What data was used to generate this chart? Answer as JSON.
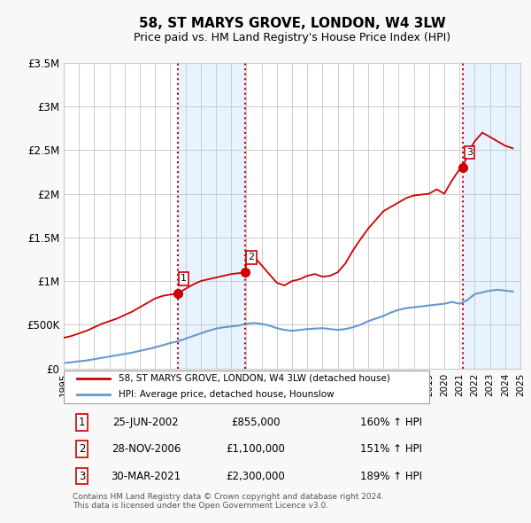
{
  "title": "58, ST MARYS GROVE, LONDON, W4 3LW",
  "subtitle": "Price paid vs. HM Land Registry's House Price Index (HPI)",
  "title_fontsize": 12,
  "subtitle_fontsize": 9.5,
  "sale_dates": [
    2002.484,
    2006.909,
    2021.247
  ],
  "sale_prices": [
    855000,
    1100000,
    2300000
  ],
  "sale_labels": [
    "1",
    "2",
    "3"
  ],
  "vline_dates": [
    2002.484,
    2006.909,
    2021.247
  ],
  "red_line_x": [
    1995.0,
    1995.5,
    1996.0,
    1996.5,
    1997.0,
    1997.5,
    1998.0,
    1998.5,
    1999.0,
    1999.5,
    2000.0,
    2000.5,
    2001.0,
    2001.5,
    2002.0,
    2002.484,
    2002.5,
    2003.0,
    2003.5,
    2004.0,
    2004.5,
    2005.0,
    2005.5,
    2006.0,
    2006.5,
    2006.909,
    2007.0,
    2007.5,
    2008.0,
    2008.5,
    2009.0,
    2009.5,
    2010.0,
    2010.5,
    2011.0,
    2011.5,
    2012.0,
    2012.5,
    2013.0,
    2013.5,
    2014.0,
    2014.5,
    2015.0,
    2015.5,
    2016.0,
    2016.5,
    2017.0,
    2017.5,
    2018.0,
    2018.5,
    2019.0,
    2019.5,
    2020.0,
    2020.5,
    2021.0,
    2021.247,
    2021.5,
    2022.0,
    2022.5,
    2023.0,
    2023.5,
    2024.0,
    2024.5
  ],
  "red_line_y": [
    350000,
    370000,
    400000,
    430000,
    470000,
    510000,
    540000,
    570000,
    610000,
    650000,
    700000,
    750000,
    800000,
    830000,
    845000,
    855000,
    860000,
    910000,
    960000,
    1000000,
    1020000,
    1040000,
    1060000,
    1080000,
    1090000,
    1100000,
    1200000,
    1280000,
    1180000,
    1080000,
    980000,
    950000,
    1000000,
    1020000,
    1060000,
    1080000,
    1050000,
    1060000,
    1100000,
    1200000,
    1350000,
    1480000,
    1600000,
    1700000,
    1800000,
    1850000,
    1900000,
    1950000,
    1980000,
    1990000,
    2000000,
    2050000,
    2000000,
    2150000,
    2280000,
    2300000,
    2450000,
    2600000,
    2700000,
    2650000,
    2600000,
    2550000,
    2520000
  ],
  "blue_line_x": [
    1995.0,
    1995.5,
    1996.0,
    1996.5,
    1997.0,
    1997.5,
    1998.0,
    1998.5,
    1999.0,
    1999.5,
    2000.0,
    2000.5,
    2001.0,
    2001.5,
    2002.0,
    2002.5,
    2003.0,
    2003.5,
    2004.0,
    2004.5,
    2005.0,
    2005.5,
    2006.0,
    2006.5,
    2007.0,
    2007.5,
    2008.0,
    2008.5,
    2009.0,
    2009.5,
    2010.0,
    2010.5,
    2011.0,
    2011.5,
    2012.0,
    2012.5,
    2013.0,
    2013.5,
    2014.0,
    2014.5,
    2015.0,
    2015.5,
    2016.0,
    2016.5,
    2017.0,
    2017.5,
    2018.0,
    2018.5,
    2019.0,
    2019.5,
    2020.0,
    2020.5,
    2021.0,
    2021.5,
    2022.0,
    2022.5,
    2023.0,
    2023.5,
    2024.0,
    2024.5
  ],
  "blue_line_y": [
    60000,
    70000,
    80000,
    90000,
    105000,
    120000,
    135000,
    150000,
    165000,
    180000,
    200000,
    220000,
    240000,
    265000,
    290000,
    310000,
    340000,
    370000,
    400000,
    430000,
    455000,
    470000,
    480000,
    490000,
    510000,
    520000,
    510000,
    490000,
    460000,
    440000,
    430000,
    440000,
    450000,
    455000,
    460000,
    450000,
    440000,
    450000,
    470000,
    500000,
    540000,
    570000,
    600000,
    640000,
    670000,
    690000,
    700000,
    710000,
    720000,
    730000,
    740000,
    760000,
    740000,
    780000,
    850000,
    870000,
    890000,
    900000,
    890000,
    880000
  ],
  "xlim": [
    1995.0,
    2025.0
  ],
  "ylim": [
    0,
    3500000
  ],
  "yticks": [
    0,
    500000,
    1000000,
    1500000,
    2000000,
    2500000,
    3000000,
    3500000
  ],
  "ytick_labels": [
    "£0",
    "£500K",
    "£1M",
    "£1.5M",
    "£2M",
    "£2.5M",
    "£3M",
    "£3.5M"
  ],
  "xtick_years": [
    1995,
    1996,
    1997,
    1998,
    1999,
    2000,
    2001,
    2002,
    2003,
    2004,
    2005,
    2006,
    2007,
    2008,
    2009,
    2010,
    2011,
    2012,
    2013,
    2014,
    2015,
    2016,
    2017,
    2018,
    2019,
    2020,
    2021,
    2022,
    2023,
    2024,
    2025
  ],
  "red_color": "#cc0000",
  "blue_color": "#6699cc",
  "vline_color": "#cc0000",
  "shading_color": "#ddeeff",
  "grid_color": "#cccccc",
  "bg_color": "#f8f8f8",
  "plot_bg_color": "#ffffff",
  "legend_entries": [
    "58, ST MARYS GROVE, LONDON, W4 3LW (detached house)",
    "HPI: Average price, detached house, Hounslow"
  ],
  "table_rows": [
    {
      "num": "1",
      "date": "25-JUN-2002",
      "price": "£855,000",
      "hpi": "160% ↑ HPI"
    },
    {
      "num": "2",
      "date": "28-NOV-2006",
      "price": "£1,100,000",
      "hpi": "151% ↑ HPI"
    },
    {
      "num": "3",
      "date": "30-MAR-2021",
      "price": "£2,300,000",
      "hpi": "189% ↑ HPI"
    }
  ],
  "footer": "Contains HM Land Registry data © Crown copyright and database right 2024.\nThis data is licensed under the Open Government Licence v3.0."
}
